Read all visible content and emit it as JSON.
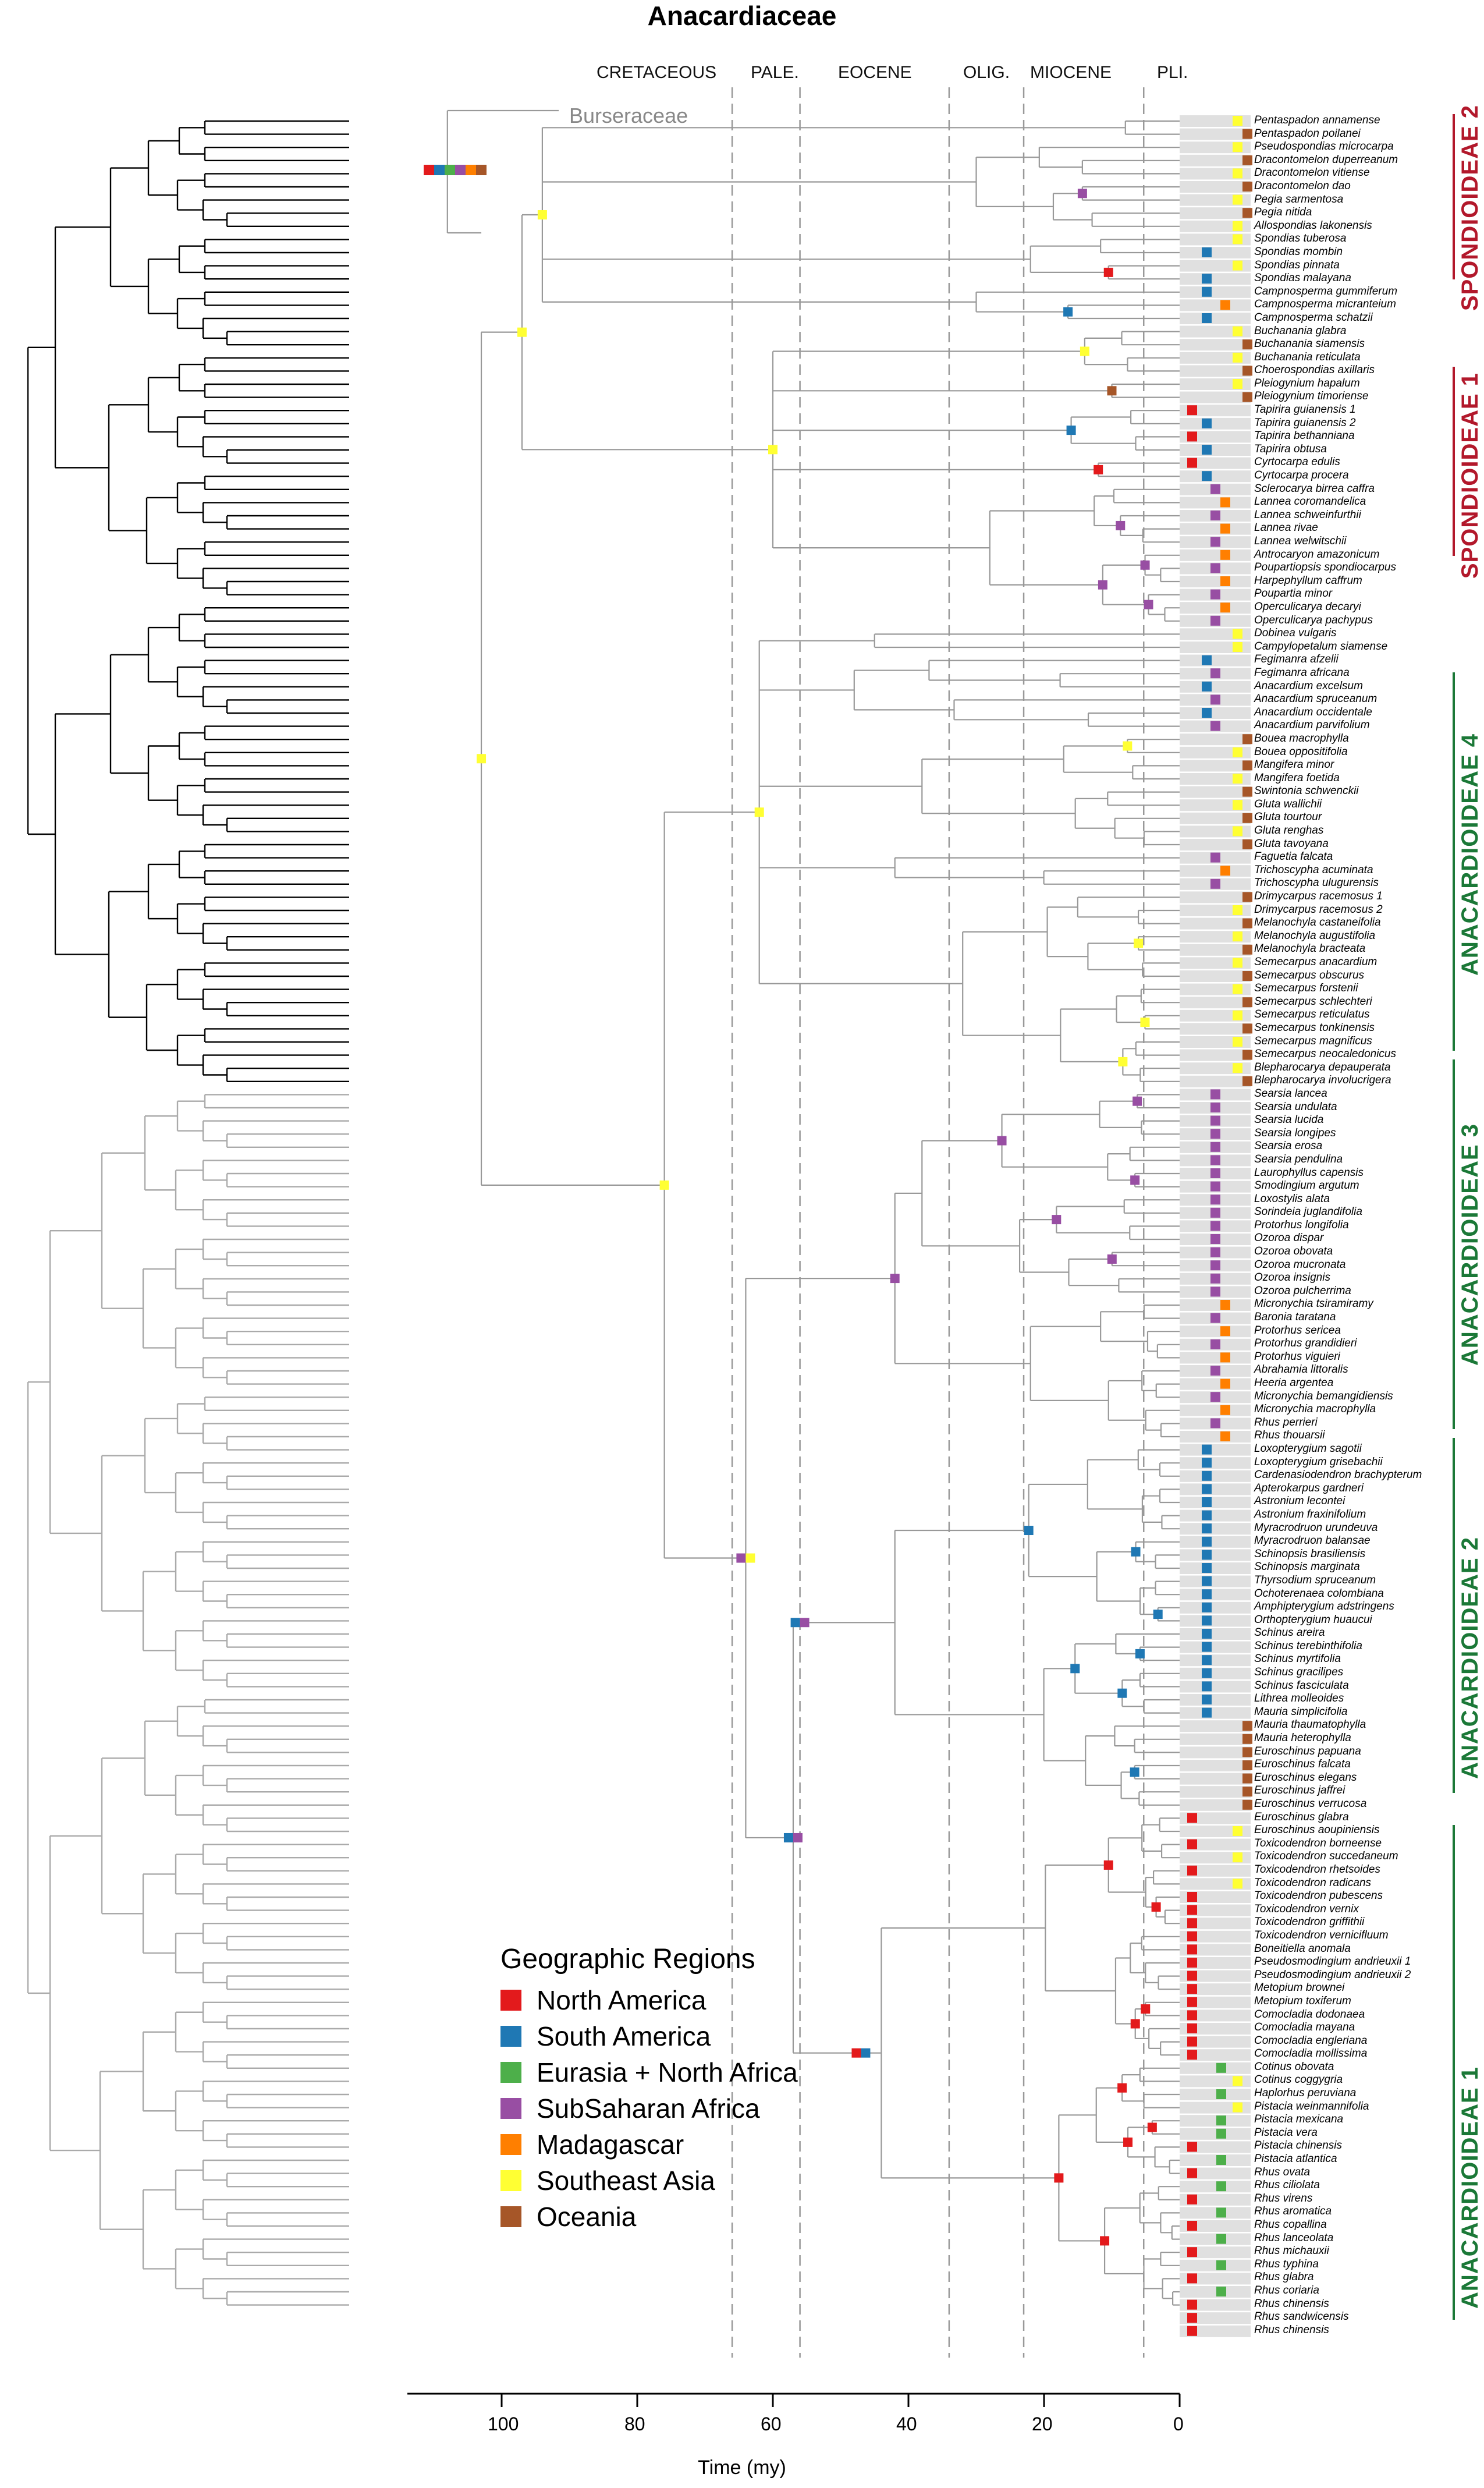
{
  "title": "Anacardiaceae",
  "epochs": [
    "CRETACEOUS",
    "PALE.",
    "EOCENE",
    "OLIG.",
    "MIOCENE",
    "PLI."
  ],
  "outgroup_label": "Burseraceae",
  "clades": [
    "SPONDIOIDEAE 2",
    "SPONDIOIDEAE 1",
    "ANACARDIOIDEAE 4",
    "ANACARDIOIDEAE 3",
    "ANACARDIOIDEAE 2",
    "ANACARDIOIDEAE 1"
  ],
  "legend": {
    "title": "Geographic Regions",
    "items": [
      "North America",
      "South America",
      "Eurasia + North Africa",
      "SubSaharan Africa",
      "Madagascar",
      "Southeast Asia",
      "Oceania"
    ]
  },
  "colors": {
    "north_america": "#e31a1c",
    "south_america": "#1f78b4",
    "eurasia": "#4daf4a",
    "subsaharan": "#984ea3",
    "madagascar": "#ff7f00",
    "se_asia": "#ffff33",
    "oceania": "#a65628",
    "spond": "#b2182b",
    "anac": "#1b7837"
  },
  "axis": {
    "label": "Time (my)",
    "ticks": [
      "100",
      "80",
      "60",
      "40",
      "20",
      "0"
    ]
  },
  "taxa": [
    "Pentaspadon annamense",
    "Pentaspadon poilanei",
    "Pseudospondias microcarpa",
    "Dracontomelon duperreanum",
    "Dracontomelon vitiense",
    "Dracontomelon dao",
    "Pegia sarmentosa",
    "Pegia nitida",
    "Allospondias lakonensis",
    "Spondias tuberosa",
    "Spondias mombin",
    "Spondias pinnata",
    "Spondias malayana",
    "Campnosperma gummiferum",
    "Campnosperma micranteium",
    "Campnosperma schatzii",
    "Buchanania glabra",
    "Buchanania siamensis",
    "Buchanania reticulata",
    "Choerospondias axillaris",
    "Pleiogynium hapalum",
    "Pleiogynium timoriense",
    "Tapirira guianensis 1",
    "Tapirira guianensis 2",
    "Tapirira bethanniana",
    "Tapirira obtusa",
    "Cyrtocarpa edulis",
    "Cyrtocarpa procera",
    "Sclerocarya birrea caffra",
    "Lannea coromandelica",
    "Lannea schweinfurthii",
    "Lannea rivae",
    "Lannea welwitschii",
    "Antrocaryon amazonicum",
    "Poupartiopsis spondiocarpus",
    "Harpephyllum caffrum",
    "Poupartia minor",
    "Operculicarya decaryi",
    "Operculicarya pachypus",
    "Dobinea vulgaris",
    "Campylopetalum siamense",
    "Fegimanra afzelii",
    "Fegimanra africana",
    "Anacardium excelsum",
    "Anacardium spruceanum",
    "Anacardium occidentale",
    "Anacardium parvifolium",
    "Bouea macrophylla",
    "Bouea oppositifolia",
    "Mangifera minor",
    "Mangifera foetida",
    "Swintonia schwenckii",
    "Gluta wallichii",
    "Gluta tourtour",
    "Gluta renghas",
    "Gluta tavoyana",
    "Faguetia falcata",
    "Trichoscypha acuminata",
    "Trichoscypha ulugurensis",
    "Drimycarpus racemosus 1",
    "Drimycarpus racemosus 2",
    "Melanochyla castaneifolia",
    "Melanochyla augustifolia",
    "Melanochyla bracteata",
    "Semecarpus anacardium",
    "Semecarpus obscurus",
    "Semecarpus forstenii",
    "Semecarpus schlechteri",
    "Semecarpus reticulatus",
    "Semecarpus tonkinensis",
    "Semecarpus magnificus",
    "Semecarpus neocaledonicus",
    "Blepharocarya depauperata",
    "Blepharocarya involucrigera",
    "Searsia lancea",
    "Searsia undulata",
    "Searsia lucida",
    "Searsia longipes",
    "Searsia erosa",
    "Searsia pendulina",
    "Laurophyllus capensis",
    "Smodingium argutum",
    "Loxostylis alata",
    "Sorindeia juglandifolia",
    "Protorhus longifolia",
    "Ozoroa dispar",
    "Ozoroa obovata",
    "Ozoroa mucronata",
    "Ozoroa insignis",
    "Ozoroa pulcherrima",
    "Micronychia tsiramiramy",
    "Baronia taratana",
    "Protorhus sericea",
    "Protorhus grandidieri",
    "Protorhus viguieri",
    "Abrahamia littoralis",
    "Heeria argentea",
    "Micronychia bemangidiensis",
    "Micronychia macrophylla",
    "Rhus perrieri",
    "Rhus thouarsii",
    "Loxopterygium sagotii",
    "Loxopterygium grisebachii",
    "Cardenasiodendron brachypterum",
    "Apterokarpus gardneri",
    "Astronium lecontei",
    "Astronium fraxinifolium",
    "Myracrodruon urundeuva",
    "Myracrodruon balansae",
    "Schinopsis brasiliensis",
    "Schinopsis marginata",
    "Thyrsodium spruceanum",
    "Ochoterenaea colombiana",
    "Amphipterygium adstringens",
    "Orthopterygium huaucui",
    "Schinus areira",
    "Schinus terebinthifolia",
    "Schinus myrtifolia",
    "Schinus gracilipes",
    "Schinus fasciculata",
    "Lithrea molleoides",
    "Mauria simplicifolia",
    "Mauria thaumatophylla",
    "Mauria heterophylla",
    "Euroschinus papuana",
    "Euroschinus falcata",
    "Euroschinus elegans",
    "Euroschinus jaffrei",
    "Euroschinus verrucosa",
    "Euroschinus glabra",
    "Euroschinus aoupiniensis",
    "Toxicodendron borneense",
    "Toxicodendron succedaneum",
    "Toxicodendron rhetsoides",
    "Toxicodendron radicans",
    "Toxicodendron pubescens",
    "Toxicodendron vernix",
    "Toxicodendron griffithii",
    "Toxicodendron vernicifluum",
    "Boneitiella anomala",
    "Pseudosmodingium andrieuxii 1",
    "Pseudosmodingium andrieuxii 2",
    "Metopium brownei",
    "Metopium toxiferum",
    "Comocladia dodonaea",
    "Comocladia mayana",
    "Comocladia engleriana",
    "Comocladia mollissima",
    "Cotinus obovata",
    "Cotinus coggygria",
    "Haplorhus peruviana",
    "Pistacia weinmannifolia",
    "Pistacia mexicana",
    "Pistacia vera",
    "Pistacia chinensis",
    "Pistacia atlantica",
    "Rhus ovata",
    "Rhus ciliolata",
    "Rhus virens",
    "Rhus aromatica",
    "Rhus copallina",
    "Rhus lanceolata",
    "Rhus michauxii",
    "Rhus typhina",
    "Rhus glabra",
    "Rhus coriaria",
    "Rhus chinensis",
    "Rhus sandwicensis",
    "Rhus chinensis"
  ]
}
